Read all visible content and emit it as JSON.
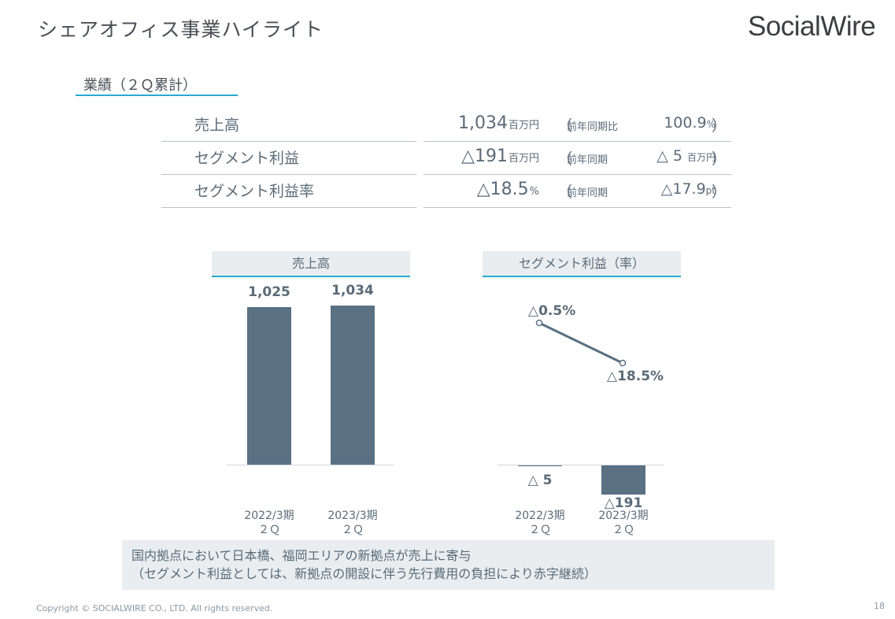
{
  "header": {
    "title": "シェアオフィス事業ハイライト",
    "logo": "SocialWire"
  },
  "section": {
    "heading": "業績（２Ｑ累計）"
  },
  "kpis": [
    {
      "label": "売上高",
      "value": "1,034",
      "unit": "百万円",
      "compare_open": "（",
      "compare_label": "前年同期比",
      "compare_value": "100.9",
      "compare_unit": "%",
      "compare_close": "）"
    },
    {
      "label": "セグメント利益",
      "value": "△191",
      "unit": "百万円",
      "compare_open": "（",
      "compare_label": "前年同期",
      "compare_value": "△ 5 ",
      "compare_unit": "百万円",
      "compare_close": "）"
    },
    {
      "label": "セグメント利益率",
      "value": "△18.5",
      "unit": "%",
      "compare_open": "（",
      "compare_label": "前年同期",
      "compare_value": "△17.9",
      "compare_unit": "pt",
      "compare_close": "）"
    }
  ],
  "chart_data": [
    {
      "type": "bar",
      "title": "売上高",
      "categories": [
        "2022/3期\n２Ｑ",
        "2023/3期\n２Ｑ"
      ],
      "values": [
        1025,
        1034
      ],
      "data_labels": [
        "1,025",
        "1,034"
      ],
      "category_lines": [
        [
          "2022/3期",
          "２Ｑ"
        ],
        [
          "2023/3期",
          "２Ｑ"
        ]
      ],
      "ylim": [
        0,
        1100
      ]
    },
    {
      "type": "bar+line",
      "title": "セグメント利益（率）",
      "categories": [
        "2022/3期\n２Ｑ",
        "2023/3期\n２Ｑ"
      ],
      "category_lines": [
        [
          "2022/3期",
          "２Ｑ"
        ],
        [
          "2023/3期",
          "２Ｑ"
        ]
      ],
      "bar_series": {
        "values": [
          -5,
          -191
        ],
        "data_labels": [
          "△ 5",
          "△191"
        ]
      },
      "line_series": {
        "values": [
          -0.5,
          -18.5
        ],
        "data_labels": [
          "△0.5%",
          "△18.5%"
        ]
      }
    }
  ],
  "note": {
    "line1": "国内拠点において日本橋、福岡エリアの新拠点が売上に寄与",
    "line2": "（セグメント利益としては、新拠点の開設に伴う先行費用の負担により赤字継続）"
  },
  "footer": {
    "copyright": "Copyright © SOCIALWIRE CO., LTD. All rights reserved.",
    "page_number": "18"
  },
  "colors": {
    "bar": "#5a7083",
    "accent": "#29a9cf",
    "text": "#5a6b78"
  }
}
